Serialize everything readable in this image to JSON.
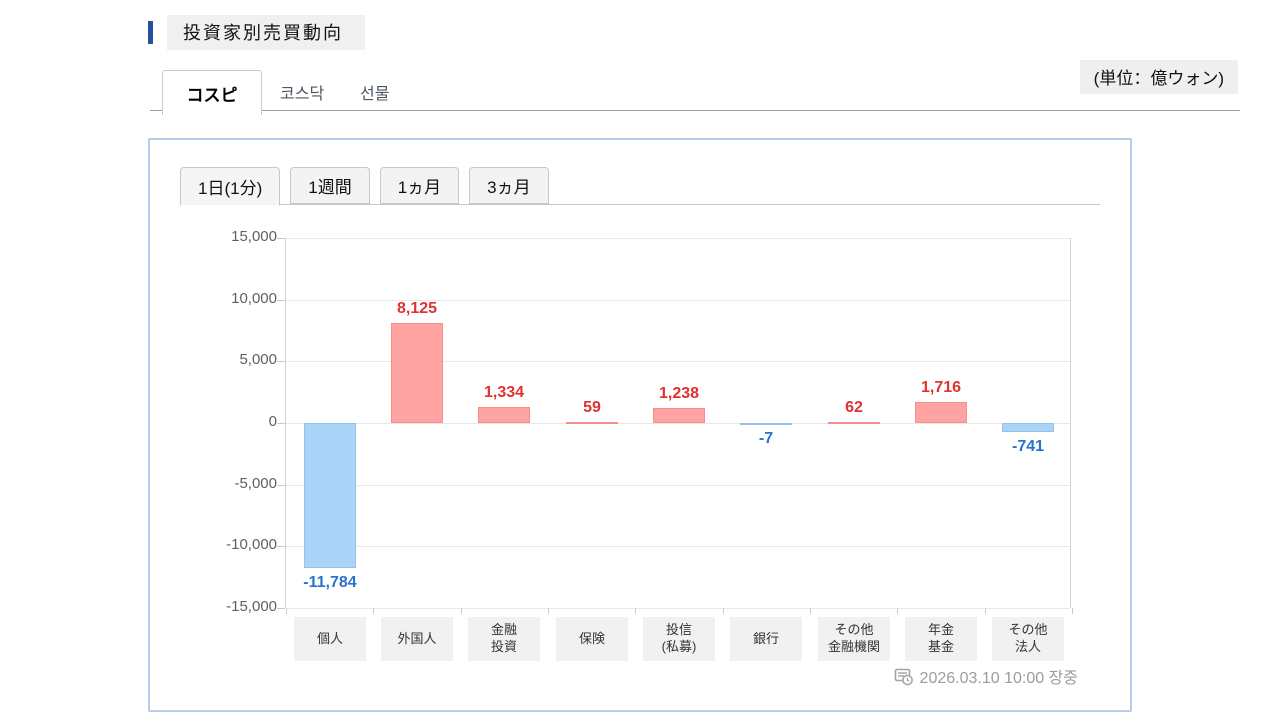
{
  "header": {
    "title": "投資家別売買動向",
    "unit_label": "(単位：億ウォン)"
  },
  "market_tabs": [
    {
      "label": "コスピ",
      "active": true
    },
    {
      "label": "코스닥",
      "active": false
    },
    {
      "label": "선물",
      "active": false
    }
  ],
  "period_tabs": [
    {
      "label": "1日(1分)",
      "active": true
    },
    {
      "label": "1週間",
      "active": false
    },
    {
      "label": "1ヵ月",
      "active": false
    },
    {
      "label": "3ヵ月",
      "active": false
    }
  ],
  "chart_data": {
    "type": "bar",
    "title": "投資家別売買動向 (コスピ / 1日(1分))",
    "unit": "億ウォン",
    "categories": [
      "個人",
      "外国人",
      "金融\n投資",
      "保険",
      "投信\n(私募)",
      "銀行",
      "その他\n金融機関",
      "年金\n基金",
      "その他\n法人"
    ],
    "values": [
      -11784,
      8125,
      1334,
      59,
      1238,
      -7,
      62,
      1716,
      -741
    ],
    "value_labels": [
      "-11,784",
      "8,125",
      "1,334",
      "59",
      "1,238",
      "-7",
      "62",
      "1,716",
      "-741"
    ],
    "ylim": [
      -15000,
      15000
    ],
    "ytick_step": 5000,
    "ytick_labels": [
      "15,000",
      "10,000",
      "5,000",
      "0",
      "-5,000",
      "-10,000",
      "-15,000"
    ],
    "grid": true,
    "legend": "none"
  },
  "footer": {
    "timestamp": "2026.03.10 10:00 장중"
  },
  "colors": {
    "accent_bar": "#24519f",
    "panel_border": "#b9cde8",
    "positive_fill": "#ffa2a2",
    "positive_border": "#f88d8d",
    "positive_text": "#e03232",
    "negative_fill": "#abd3f8",
    "negative_border": "#95c0ee",
    "negative_text": "#2a72cf"
  }
}
